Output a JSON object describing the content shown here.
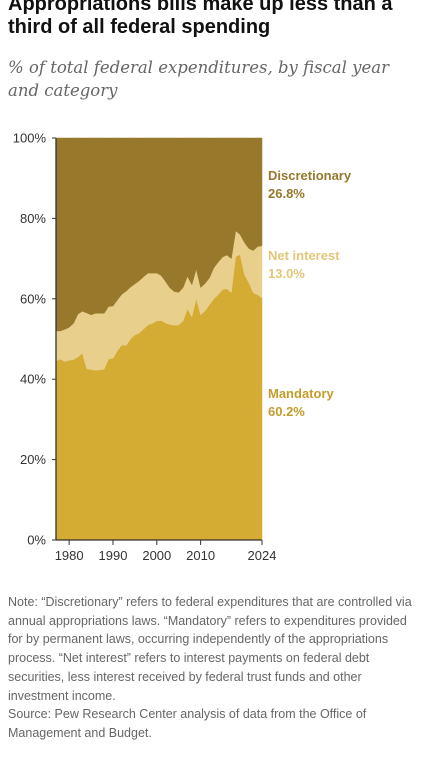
{
  "chart_data": {
    "type": "area",
    "stacked": true,
    "percent": true,
    "title": "Appropriations bills make up less than a third of all federal spending",
    "subtitle": "% of total federal expenditures, by fiscal year and category",
    "xlabel": "",
    "ylabel": "",
    "xlim": [
      1977,
      2024
    ],
    "ylim": [
      0,
      100
    ],
    "x_ticks": [
      "1980",
      "1990",
      "2000",
      "2010",
      "2024"
    ],
    "x_tick_values": [
      1980,
      1990,
      2000,
      2010,
      2024
    ],
    "y_ticks": [
      "0%",
      "20%",
      "40%",
      "60%",
      "80%",
      "100%"
    ],
    "y_tick_values": [
      0,
      20,
      40,
      60,
      80,
      100
    ],
    "x": [
      1977,
      1978,
      1979,
      1980,
      1981,
      1982,
      1983,
      1984,
      1985,
      1986,
      1987,
      1988,
      1989,
      1990,
      1991,
      1992,
      1993,
      1994,
      1995,
      1996,
      1997,
      1998,
      1999,
      2000,
      2001,
      2002,
      2003,
      2004,
      2005,
      2006,
      2007,
      2008,
      2009,
      2010,
      2011,
      2012,
      2013,
      2014,
      2015,
      2016,
      2017,
      2018,
      2019,
      2020,
      2021,
      2022,
      2023,
      2024
    ],
    "series": [
      {
        "name": "Mandatory",
        "color": "#d4ab33",
        "values": [
          44.5,
          45.0,
          44.4,
          44.7,
          44.9,
          45.5,
          46.5,
          42.6,
          42.4,
          42.2,
          42.3,
          42.5,
          45.0,
          45.2,
          47.0,
          48.5,
          48.4,
          50.0,
          51.0,
          51.5,
          52.5,
          53.5,
          53.9,
          54.5,
          54.6,
          54.0,
          53.6,
          53.4,
          53.5,
          54.5,
          57.5,
          55.5,
          60.0,
          56.0,
          57.0,
          58.5,
          60.0,
          61.0,
          62.3,
          62.5,
          61.5,
          70.5,
          71.0,
          66.0,
          64.0,
          61.5,
          61.0,
          60.2
        ]
      },
      {
        "name": "Net interest",
        "color": "#e8cf8c",
        "values": [
          7.5,
          7.0,
          8.0,
          8.2,
          9.0,
          10.7,
          10.4,
          13.9,
          13.6,
          14.2,
          14.1,
          13.9,
          13.1,
          13.0,
          12.7,
          12.6,
          13.5,
          12.9,
          12.7,
          13.0,
          13.0,
          12.9,
          12.5,
          11.9,
          11.2,
          10.3,
          9.1,
          8.4,
          8.1,
          8.3,
          8.1,
          8.0,
          7.4,
          6.8,
          6.8,
          6.7,
          7.7,
          8.1,
          8.1,
          8.4,
          8.5,
          6.4,
          5.0,
          8.0,
          8.5,
          10.5,
          12.0,
          13.0
        ]
      },
      {
        "name": "Discretionary",
        "color": "#98782a",
        "values": [
          48.0,
          48.0,
          47.6,
          47.1,
          46.1,
          43.8,
          43.1,
          43.5,
          44.0,
          43.6,
          43.6,
          43.6,
          41.9,
          41.8,
          40.3,
          38.9,
          38.1,
          37.1,
          36.3,
          35.5,
          34.5,
          33.6,
          33.6,
          33.6,
          34.2,
          35.7,
          37.3,
          38.2,
          38.4,
          37.2,
          34.4,
          36.5,
          32.6,
          37.2,
          36.2,
          34.8,
          32.3,
          30.9,
          29.6,
          29.1,
          30.0,
          23.1,
          24.0,
          26.0,
          27.5,
          28.0,
          27.0,
          26.8
        ]
      }
    ],
    "end_labels": [
      {
        "name": "Discretionary",
        "value": "26.8%",
        "color": "#98782a"
      },
      {
        "name": "Net interest",
        "value": "13.0%",
        "color": "#e3c777"
      },
      {
        "name": "Mandatory",
        "value": "60.2%",
        "color": "#c49c2c"
      }
    ],
    "grid": false,
    "legend": "right-end-labels"
  },
  "notes": {
    "note": "Note: “Discretionary” refers to federal expenditures that are controlled via annual appropriations laws. “Mandatory” refers to expenditures provided for by permanent laws, occurring independently of the appropriations process. “Net interest” refers to interest payments on federal debt securities, less interest received by federal trust funds and other investment income.",
    "source": "Source: Pew Research Center analysis of data from the Office of Management and Budget."
  }
}
